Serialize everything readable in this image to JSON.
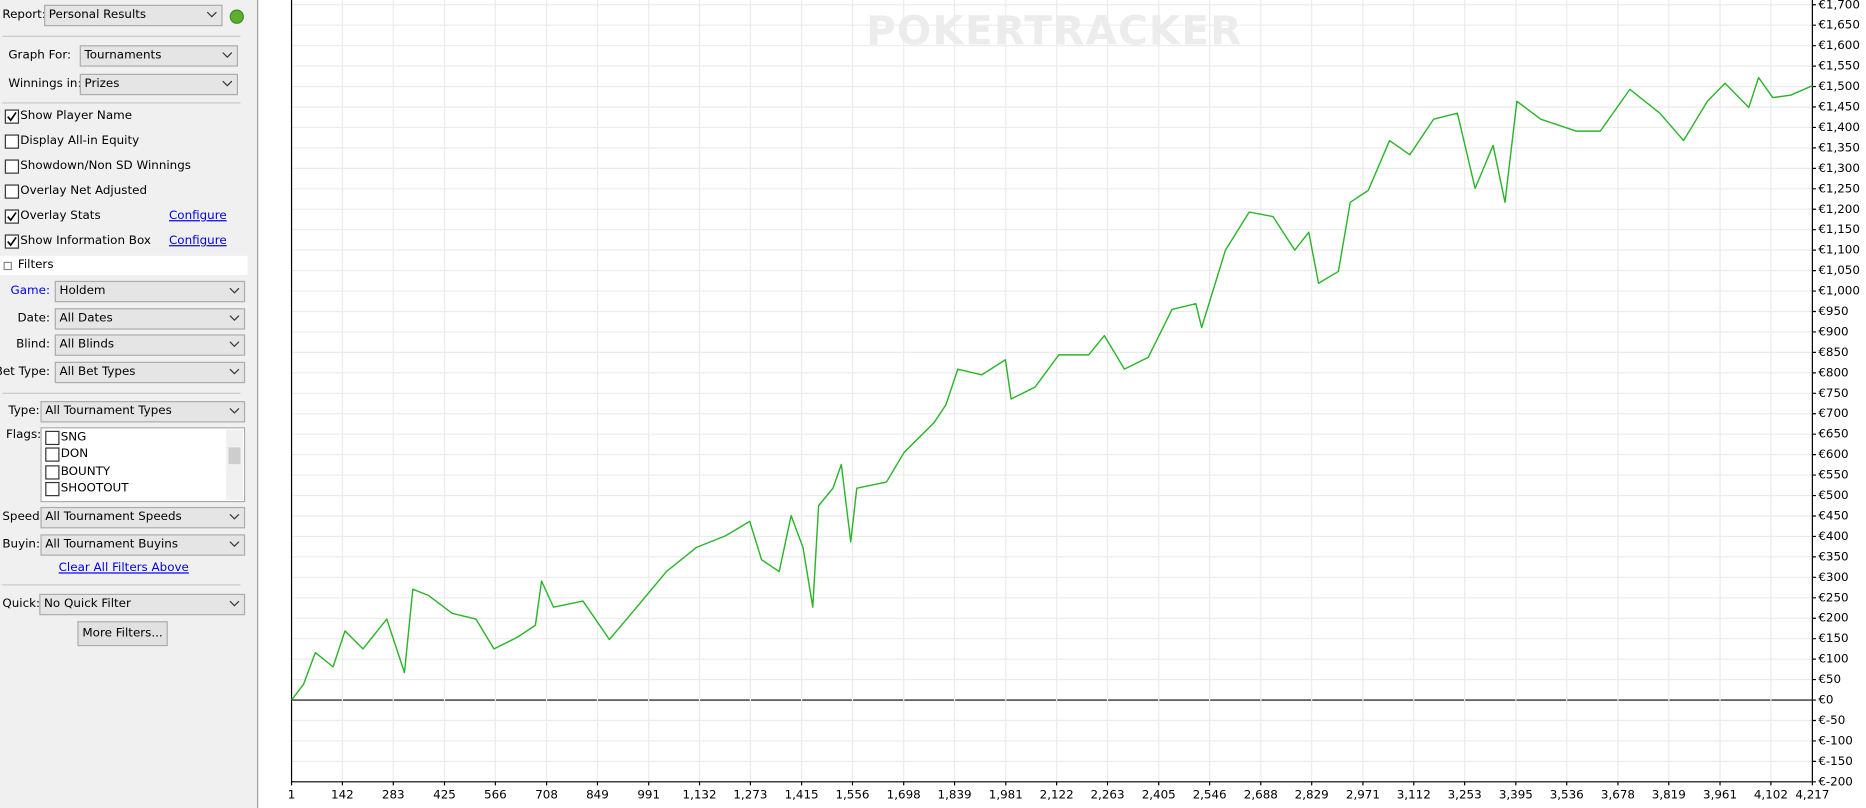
{
  "ui": {
    "report_label": "Report:",
    "report": "Personal Results",
    "graph_for_label": "Graph For:",
    "graph_for": "Tournaments",
    "winnings_label": "Winnings in:",
    "winnings": "Prizes",
    "options": [
      {
        "label": "Show Player Name",
        "checked": true
      },
      {
        "label": "Display All-in Equity",
        "checked": false
      },
      {
        "label": "Showdown/Non SD Winnings",
        "checked": false
      },
      {
        "label": "Overlay Net Adjusted",
        "checked": false
      },
      {
        "label": "Overlay Stats",
        "checked": true,
        "link": "Configure"
      },
      {
        "label": "Show Information Box",
        "checked": true,
        "link": "Configure"
      }
    ],
    "filters_title": "Filters",
    "filters": [
      {
        "label": "Game:",
        "value": "Holdem"
      },
      {
        "label": "Date:",
        "value": "All Dates"
      },
      {
        "label": "Blind:",
        "value": "All Blinds"
      },
      {
        "label": "Bet Type:",
        "value": "All Bet Types"
      }
    ],
    "type_label": "Type:",
    "type": "All Tournament Types",
    "flags_label": "Flags:",
    "flags": [
      "SNG",
      "DON",
      "BOUNTY",
      "SHOOTOUT"
    ],
    "speed_label": "Speed:",
    "speed": "All Tournament Speeds",
    "buyin_label": "Buyin:",
    "buyin": "All Tournament Buyins",
    "clear_link": "Clear All Filters Above",
    "quick_label": "Quick:",
    "quick": "No Quick Filter",
    "more_button": "More Filters...",
    "watermark": "POKERTRACKER"
  },
  "chart_data": {
    "type": "line",
    "color": "#2bb52b",
    "grid": true,
    "x": [
      1,
      34,
      67,
      116,
      149,
      199,
      265,
      314,
      337,
      380,
      446,
      512,
      562,
      628,
      677,
      694,
      727,
      809,
      882,
      958,
      1040,
      1123,
      1205,
      1271,
      1304,
      1353,
      1386,
      1419,
      1446,
      1462,
      1502,
      1525,
      1551,
      1568,
      1650,
      1699,
      1782,
      1815,
      1848,
      1914,
      1980,
      1996,
      2062,
      2128,
      2211,
      2254,
      2310,
      2376,
      2442,
      2508,
      2524,
      2590,
      2656,
      2722,
      2782,
      2821,
      2848,
      2903,
      2936,
      2986,
      3045,
      3101,
      3167,
      3233,
      3282,
      3332,
      3365,
      3398,
      3464,
      3563,
      3629,
      3711,
      3794,
      3860,
      3926,
      3975,
      4041,
      4068,
      4107,
      4157,
      4217
    ],
    "values": [
      0,
      38,
      116,
      81,
      169,
      125,
      198,
      67,
      271,
      256,
      212,
      198,
      125,
      154,
      183,
      291,
      227,
      242,
      148,
      227,
      314,
      373,
      402,
      437,
      343,
      314,
      451,
      373,
      227,
      475,
      518,
      576,
      387,
      518,
      533,
      605,
      678,
      722,
      809,
      795,
      832,
      736,
      765,
      844,
      844,
      891,
      809,
      838,
      955,
      969,
      911,
      1100,
      1193,
      1182,
      1100,
      1144,
      1019,
      1048,
      1217,
      1246,
      1368,
      1333,
      1420,
      1435,
      1251,
      1356,
      1217,
      1464,
      1420,
      1391,
      1391,
      1493,
      1435,
      1368,
      1464,
      1508,
      1449,
      1522,
      1473,
      1479,
      1502
    ],
    "xlim": [
      1,
      4217
    ],
    "xticks": [
      1,
      142,
      283,
      425,
      566,
      708,
      849,
      991,
      {
        "value": 1132,
        "label": "1,132"
      },
      {
        "value": 1273,
        "label": "1,273"
      },
      {
        "value": 1415,
        "label": "1,415"
      },
      {
        "value": 1556,
        "label": "1,556"
      },
      {
        "value": 1698,
        "label": "1,698"
      },
      {
        "value": 1839,
        "label": "1,839"
      },
      {
        "value": 1981,
        "label": "1,981"
      },
      {
        "value": 2122,
        "label": "2,122"
      },
      {
        "value": 2263,
        "label": "2,263"
      },
      {
        "value": 2405,
        "label": "2,405"
      },
      {
        "value": 2546,
        "label": "2,546"
      },
      {
        "value": 2688,
        "label": "2,688"
      },
      {
        "value": 2829,
        "label": "2,829"
      },
      {
        "value": 2971,
        "label": "2,971"
      },
      {
        "value": 3112,
        "label": "3,112"
      },
      {
        "value": 3253,
        "label": "3,253"
      },
      {
        "value": 3395,
        "label": "3,395"
      },
      {
        "value": 3536,
        "label": "3,536"
      },
      {
        "value": 3678,
        "label": "3,678"
      },
      {
        "value": 3819,
        "label": "3,819"
      },
      {
        "value": 3961,
        "label": "3,961"
      },
      {
        "value": 4102,
        "label": "4,102"
      },
      {
        "value": 4217,
        "label": "4,217"
      }
    ],
    "ylim": [
      -200,
      1700
    ],
    "yticks": [
      {
        "value": -200,
        "label": "€-200"
      },
      {
        "value": -150,
        "label": "€-150"
      },
      {
        "value": -100,
        "label": "€-100"
      },
      {
        "value": -50,
        "label": "€-50"
      },
      {
        "value": 0,
        "label": "€0"
      },
      {
        "value": 50,
        "label": "€50"
      },
      {
        "value": 100,
        "label": "€100"
      },
      {
        "value": 150,
        "label": "€150"
      },
      {
        "value": 200,
        "label": "€200"
      },
      {
        "value": 250,
        "label": "€250"
      },
      {
        "value": 300,
        "label": "€300"
      },
      {
        "value": 350,
        "label": "€350"
      },
      {
        "value": 400,
        "label": "€400"
      },
      {
        "value": 450,
        "label": "€450"
      },
      {
        "value": 500,
        "label": "€500"
      },
      {
        "value": 550,
        "label": "€550"
      },
      {
        "value": 600,
        "label": "€600"
      },
      {
        "value": 650,
        "label": "€650"
      },
      {
        "value": 700,
        "label": "€700"
      },
      {
        "value": 750,
        "label": "€750"
      },
      {
        "value": 800,
        "label": "€800"
      },
      {
        "value": 850,
        "label": "€850"
      },
      {
        "value": 900,
        "label": "€900"
      },
      {
        "value": 950,
        "label": "€950"
      },
      {
        "value": 1000,
        "label": "€1,000"
      },
      {
        "value": 1050,
        "label": "€1,050"
      },
      {
        "value": 1100,
        "label": "€1,100"
      },
      {
        "value": 1150,
        "label": "€1,150"
      },
      {
        "value": 1200,
        "label": "€1,200"
      },
      {
        "value": 1250,
        "label": "€1,250"
      },
      {
        "value": 1300,
        "label": "€1,300"
      },
      {
        "value": 1350,
        "label": "€1,350"
      },
      {
        "value": 1400,
        "label": "€1,400"
      },
      {
        "value": 1450,
        "label": "€1,450"
      },
      {
        "value": 1500,
        "label": "€1,500"
      },
      {
        "value": 1550,
        "label": "€1,550"
      },
      {
        "value": 1600,
        "label": "€1,600"
      },
      {
        "value": 1650,
        "label": "€1,650"
      },
      {
        "value": 1700,
        "label": "€1,700"
      }
    ]
  }
}
